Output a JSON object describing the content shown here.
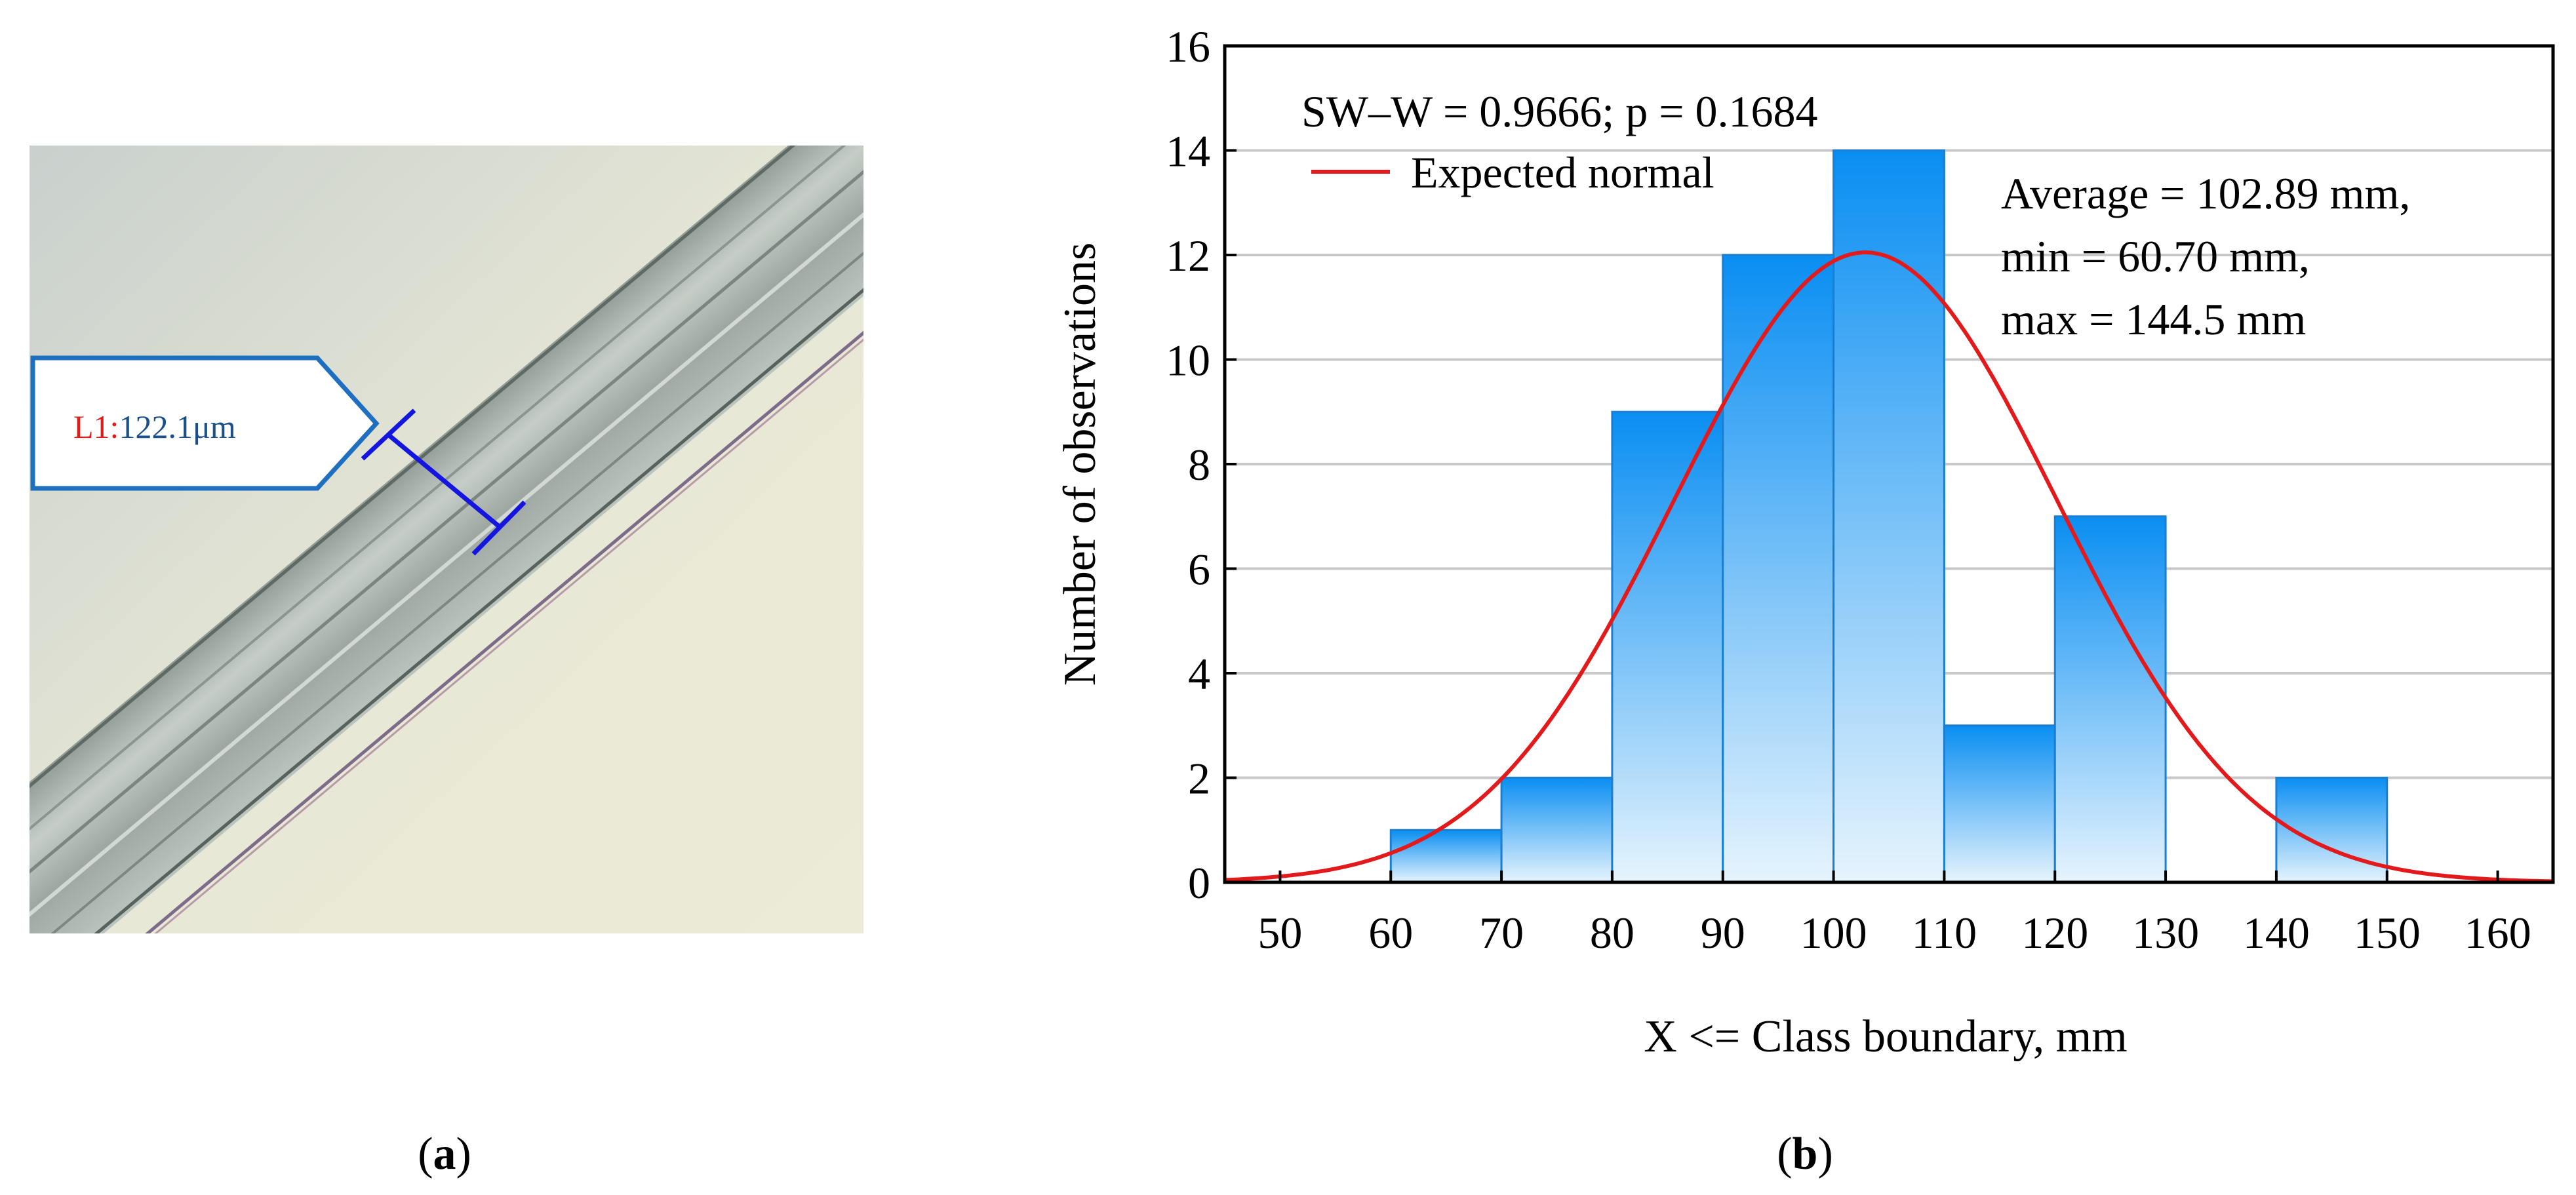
{
  "panel_a": {
    "caption": "(a)",
    "caption_letter": "a",
    "measurement": {
      "id": "L1:",
      "value": "122.1μm",
      "id_color": "#e01b1b",
      "value_color": "#1a4f8a"
    },
    "marker_color": "#1515e0"
  },
  "panel_b": {
    "caption": "(b)",
    "caption_letter": "b",
    "stats_text": "SW–W = 0.9666; p = 0.1684",
    "legend_label": "Expected normal",
    "annotation": {
      "line1": "Average = 102.89 mm,",
      "line2": "min = 60.70 mm,",
      "line3": "max = 144.5 mm"
    },
    "colors": {
      "bar_top": "#0a8ef2",
      "bar_bottom": "#e6f4fd",
      "bar_edge": "#1a7fd0",
      "curve": "#e31a1c",
      "grid": "#c8c8c8"
    }
  },
  "chart_data": {
    "type": "bar",
    "subtype": "histogram",
    "title": "",
    "xlabel": "X <= Class boundary, mm",
    "ylabel": "Number of observations",
    "bins": [
      {
        "from": 60,
        "to": 70,
        "count": 1
      },
      {
        "from": 70,
        "to": 80,
        "count": 2
      },
      {
        "from": 80,
        "to": 90,
        "count": 9
      },
      {
        "from": 90,
        "to": 100,
        "count": 12
      },
      {
        "from": 100,
        "to": 110,
        "count": 14
      },
      {
        "from": 110,
        "to": 120,
        "count": 3
      },
      {
        "from": 120,
        "to": 130,
        "count": 7
      },
      {
        "from": 130,
        "to": 140,
        "count": 0
      },
      {
        "from": 140,
        "to": 150,
        "count": 2
      }
    ],
    "xlim": [
      45,
      165
    ],
    "ylim": [
      0,
      16
    ],
    "xticks": [
      50,
      60,
      70,
      80,
      90,
      100,
      110,
      120,
      130,
      140,
      150,
      160
    ],
    "yticks": [
      0,
      2,
      4,
      6,
      8,
      10,
      12,
      14,
      16
    ],
    "grid": "horizontal",
    "legend": "top-left",
    "series": [
      {
        "name": "Expected normal",
        "type": "line",
        "mean": 102.89,
        "sd": 17.3,
        "peak_count": 12.05
      }
    ]
  }
}
